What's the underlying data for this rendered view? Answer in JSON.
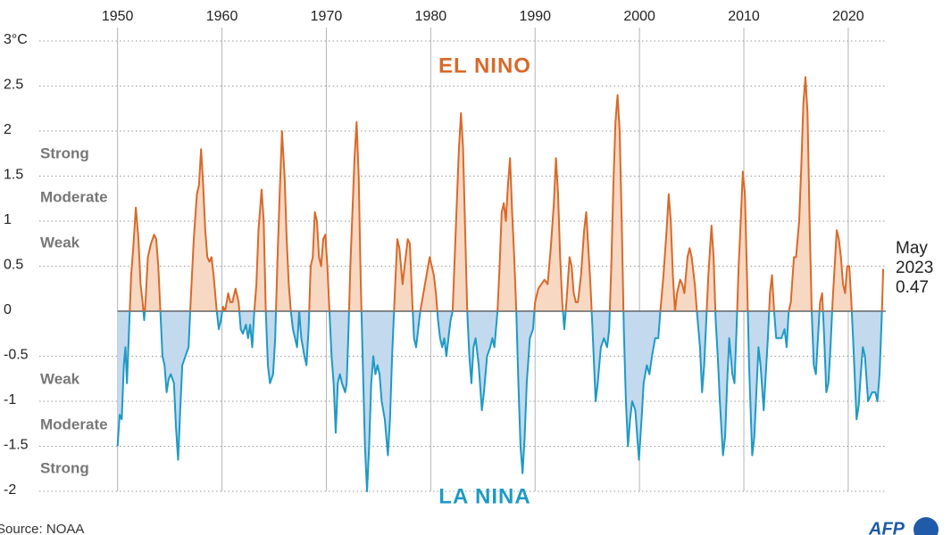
{
  "chart_data": {
    "type": "area",
    "title": "EL NINO",
    "subtitle": "LA NINA",
    "strength_labels_positive": [
      "Strong",
      "Moderate",
      "Weak"
    ],
    "strength_labels_negative": [
      "Weak",
      "Moderate",
      "Strong"
    ],
    "end_label": [
      "May",
      "2023",
      "0.47"
    ],
    "source": "Source: NOAA",
    "logo": "AFP",
    "color_above": "#d9692a",
    "color_below": "#1e9ac4",
    "fill_above": "#f7d8c3",
    "fill_below": "#c3d9ee",
    "grid": true,
    "xlim": [
      1942.5,
      2023.6
    ],
    "xticks": [
      1950,
      1960,
      1970,
      1980,
      1990,
      2000,
      2010,
      2020
    ],
    "ylim": [
      -2,
      3
    ],
    "yticks": [
      {
        "value": 3,
        "label": "3°C"
      },
      2.5,
      2,
      1.5,
      1,
      0.5,
      0,
      -0.5,
      -1,
      -1.5,
      -2
    ],
    "x": [
      1950.0,
      1950.2,
      1950.4,
      1950.6,
      1950.75,
      1950.9,
      1951.1,
      1951.3,
      1951.5,
      1951.75,
      1952.0,
      1952.2,
      1952.4,
      1952.55,
      1952.7,
      1952.9,
      1953.2,
      1953.5,
      1953.7,
      1953.9,
      1954.1,
      1954.3,
      1954.5,
      1954.7,
      1954.9,
      1955.1,
      1955.4,
      1955.6,
      1955.8,
      1956.0,
      1956.2,
      1956.5,
      1956.8,
      1957.0,
      1957.3,
      1957.6,
      1957.8,
      1958.0,
      1958.2,
      1958.4,
      1958.6,
      1958.8,
      1959.0,
      1959.2,
      1959.5,
      1959.7,
      1959.9,
      1960.1,
      1960.3,
      1960.6,
      1960.8,
      1961.0,
      1961.3,
      1961.6,
      1961.8,
      1962.0,
      1962.3,
      1962.5,
      1962.7,
      1962.9,
      1963.1,
      1963.3,
      1963.5,
      1963.8,
      1964.0,
      1964.2,
      1964.4,
      1964.6,
      1964.9,
      1965.1,
      1965.3,
      1965.5,
      1965.75,
      1966.0,
      1966.2,
      1966.4,
      1966.6,
      1966.8,
      1967.0,
      1967.2,
      1967.4,
      1967.6,
      1967.9,
      1968.1,
      1968.3,
      1968.5,
      1968.7,
      1968.9,
      1969.1,
      1969.3,
      1969.5,
      1969.7,
      1969.9,
      1970.1,
      1970.3,
      1970.5,
      1970.7,
      1970.9,
      1971.1,
      1971.3,
      1971.5,
      1971.8,
      1971.95,
      1972.1,
      1972.3,
      1972.5,
      1972.7,
      1972.9,
      1973.1,
      1973.3,
      1973.5,
      1973.7,
      1973.9,
      1974.1,
      1974.3,
      1974.5,
      1974.7,
      1974.9,
      1975.1,
      1975.3,
      1975.6,
      1975.9,
      1976.1,
      1976.3,
      1976.6,
      1976.8,
      1977.0,
      1977.3,
      1977.5,
      1977.8,
      1978.0,
      1978.2,
      1978.4,
      1978.6,
      1978.8,
      1979.0,
      1979.3,
      1979.6,
      1979.9,
      1980.1,
      1980.3,
      1980.5,
      1980.7,
      1980.9,
      1981.1,
      1981.3,
      1981.5,
      1981.7,
      1981.9,
      1982.1,
      1982.3,
      1982.5,
      1982.7,
      1982.9,
      1983.1,
      1983.3,
      1983.5,
      1983.7,
      1983.9,
      1984.1,
      1984.3,
      1984.6,
      1984.9,
      1985.1,
      1985.4,
      1985.7,
      1985.9,
      1986.1,
      1986.4,
      1986.6,
      1986.8,
      1987.0,
      1987.2,
      1987.4,
      1987.6,
      1987.8,
      1988.0,
      1988.2,
      1988.4,
      1988.6,
      1988.8,
      1989.0,
      1989.2,
      1989.5,
      1989.8,
      1990.0,
      1990.3,
      1990.6,
      1990.9,
      1991.2,
      1991.5,
      1991.8,
      1992.0,
      1992.2,
      1992.4,
      1992.6,
      1992.8,
      1993.0,
      1993.3,
      1993.5,
      1993.7,
      1993.9,
      1994.1,
      1994.4,
      1994.7,
      1994.9,
      1995.1,
      1995.3,
      1995.5,
      1995.8,
      1996.0,
      1996.3,
      1996.6,
      1996.9,
      1997.1,
      1997.3,
      1997.5,
      1997.7,
      1997.9,
      1998.1,
      1998.3,
      1998.5,
      1998.7,
      1998.9,
      1999.1,
      1999.3,
      1999.6,
      1999.95,
      2000.2,
      2000.4,
      2000.7,
      2000.95,
      2001.2,
      2001.5,
      2001.8,
      2002.0,
      2002.3,
      2002.6,
      2002.8,
      2003.0,
      2003.2,
      2003.4,
      2003.6,
      2003.9,
      2004.1,
      2004.3,
      2004.6,
      2004.8,
      2005.0,
      2005.3,
      2005.5,
      2005.8,
      2006.0,
      2006.2,
      2006.4,
      2006.6,
      2006.9,
      2007.1,
      2007.3,
      2007.5,
      2007.7,
      2008.0,
      2008.2,
      2008.4,
      2008.6,
      2008.9,
      2009.1,
      2009.3,
      2009.5,
      2009.7,
      2009.9,
      2010.1,
      2010.3,
      2010.5,
      2010.8,
      2011.0,
      2011.2,
      2011.4,
      2011.6,
      2011.9,
      2012.1,
      2012.3,
      2012.5,
      2012.7,
      2012.9,
      2013.1,
      2013.4,
      2013.6,
      2013.9,
      2014.1,
      2014.3,
      2014.5,
      2014.8,
      2015.0,
      2015.3,
      2015.5,
      2015.7,
      2015.9,
      2016.1,
      2016.3,
      2016.5,
      2016.7,
      2016.9,
      2017.1,
      2017.3,
      2017.5,
      2017.7,
      2017.9,
      2018.1,
      2018.3,
      2018.5,
      2018.7,
      2018.9,
      2019.1,
      2019.3,
      2019.5,
      2019.7,
      2019.9,
      2020.1,
      2020.3,
      2020.5,
      2020.8,
      2021.0,
      2021.2,
      2021.4,
      2021.6,
      2021.9,
      2022.1,
      2022.3,
      2022.6,
      2022.8,
      2023.0,
      2023.2,
      2023.35
    ],
    "values": [
      -1.5,
      -1.15,
      -1.2,
      -0.6,
      -0.4,
      -0.8,
      -0.2,
      0.4,
      0.7,
      1.15,
      0.8,
      0.3,
      0.1,
      -0.1,
      0.15,
      0.6,
      0.75,
      0.85,
      0.8,
      0.5,
      0.0,
      -0.5,
      -0.6,
      -0.9,
      -0.75,
      -0.7,
      -0.8,
      -1.3,
      -1.65,
      -1.1,
      -0.6,
      -0.5,
      -0.4,
      0.1,
      0.8,
      1.3,
      1.4,
      1.8,
      1.4,
      0.9,
      0.6,
      0.55,
      0.6,
      0.4,
      0.0,
      -0.2,
      -0.1,
      0.05,
      0.0,
      0.2,
      0.1,
      0.1,
      0.25,
      0.1,
      -0.2,
      -0.25,
      -0.15,
      -0.3,
      -0.15,
      -0.4,
      0.0,
      0.3,
      0.9,
      1.35,
      1.0,
      0.0,
      -0.6,
      -0.8,
      -0.7,
      -0.3,
      0.5,
      1.2,
      2.0,
      1.5,
      0.8,
      0.3,
      0.0,
      -0.2,
      -0.3,
      -0.4,
      0.0,
      -0.3,
      -0.5,
      -0.6,
      -0.2,
      0.5,
      0.6,
      1.1,
      1.0,
      0.6,
      0.5,
      0.8,
      0.85,
      0.5,
      0.0,
      -0.5,
      -0.8,
      -1.35,
      -0.8,
      -0.7,
      -0.8,
      -0.9,
      -0.8,
      -0.3,
      0.5,
      1.1,
      1.7,
      2.1,
      1.5,
      0.3,
      -0.6,
      -1.5,
      -2.0,
      -1.5,
      -0.8,
      -0.5,
      -0.7,
      -0.6,
      -0.7,
      -1.0,
      -1.2,
      -1.6,
      -1.2,
      -0.5,
      0.3,
      0.8,
      0.7,
      0.3,
      0.5,
      0.8,
      0.75,
      0.2,
      -0.3,
      -0.4,
      -0.2,
      0.0,
      0.2,
      0.4,
      0.6,
      0.5,
      0.4,
      0.2,
      -0.1,
      -0.3,
      -0.4,
      -0.3,
      -0.5,
      -0.3,
      -0.1,
      0.0,
      0.6,
      1.2,
      1.8,
      2.2,
      1.8,
      0.9,
      0.0,
      -0.5,
      -0.8,
      -0.4,
      -0.3,
      -0.6,
      -1.1,
      -0.9,
      -0.5,
      -0.4,
      -0.3,
      -0.4,
      0.0,
      0.5,
      1.1,
      1.2,
      1.0,
      1.4,
      1.7,
      1.1,
      0.6,
      0.0,
      -0.8,
      -1.5,
      -1.8,
      -1.4,
      -0.8,
      -0.3,
      -0.2,
      0.1,
      0.25,
      0.3,
      0.35,
      0.3,
      0.7,
      1.2,
      1.7,
      1.3,
      0.6,
      0.1,
      -0.2,
      0.1,
      0.6,
      0.5,
      0.2,
      0.1,
      0.1,
      0.4,
      0.9,
      1.1,
      0.7,
      0.3,
      -0.2,
      -1.0,
      -0.8,
      -0.4,
      -0.3,
      -0.4,
      -0.2,
      0.5,
      1.4,
      2.1,
      2.4,
      2.0,
      1.0,
      -0.2,
      -1.0,
      -1.5,
      -1.2,
      -1.0,
      -1.1,
      -1.65,
      -1.2,
      -0.8,
      -0.6,
      -0.7,
      -0.5,
      -0.3,
      -0.3,
      0.0,
      0.4,
      0.9,
      1.3,
      1.0,
      0.4,
      0.0,
      0.2,
      0.35,
      0.3,
      0.2,
      0.6,
      0.7,
      0.6,
      0.3,
      0.0,
      -0.4,
      -0.9,
      -0.6,
      -0.1,
      0.4,
      0.95,
      0.6,
      -0.1,
      -0.5,
      -1.0,
      -1.6,
      -1.4,
      -0.8,
      -0.3,
      -0.7,
      -0.8,
      -0.2,
      0.5,
      1.0,
      1.55,
      1.3,
      0.4,
      -0.6,
      -1.6,
      -1.4,
      -0.9,
      -0.4,
      -0.6,
      -1.1,
      -0.7,
      -0.3,
      0.2,
      0.4,
      0.0,
      -0.3,
      -0.3,
      -0.3,
      -0.2,
      -0.4,
      0.0,
      0.1,
      0.6,
      0.6,
      1.0,
      1.6,
      2.3,
      2.6,
      2.2,
      1.0,
      0.0,
      -0.6,
      -0.7,
      -0.3,
      0.1,
      0.2,
      -0.3,
      -0.9,
      -0.8,
      -0.4,
      0.1,
      0.5,
      0.9,
      0.8,
      0.6,
      0.3,
      0.2,
      0.5,
      0.5,
      0.1,
      -0.4,
      -1.2,
      -1.05,
      -0.7,
      -0.4,
      -0.5,
      -1.0,
      -0.95,
      -0.9,
      -0.9,
      -1.0,
      -0.7,
      -0.1,
      0.47
    ]
  }
}
